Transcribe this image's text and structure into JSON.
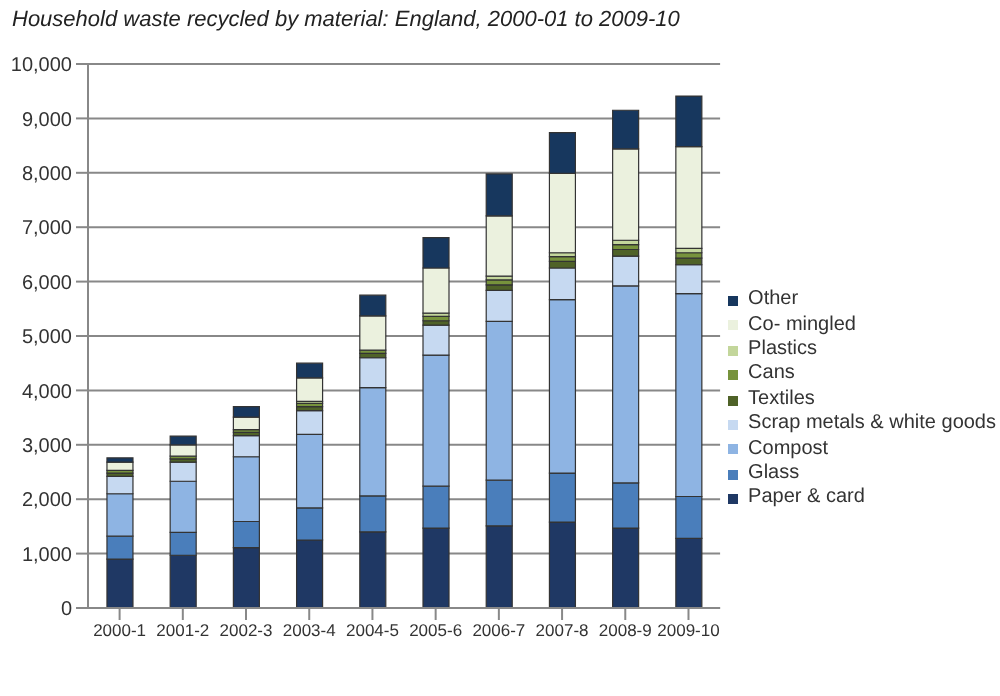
{
  "chart_data": {
    "type": "bar",
    "title": "Household waste recycled by material: England, 2000-01 to 2009-10",
    "categories": [
      "2000-1",
      "2001-2",
      "2002-3",
      "2003-4",
      "2004-5",
      "2005-6",
      "2006-7",
      "2007-8",
      "2008-9",
      "2009-10"
    ],
    "stacked": true,
    "grid": "y",
    "legend": "right",
    "ylim": [
      0,
      10000
    ],
    "yticks": [
      0,
      {
        "value": 1000,
        "label": "1,000"
      },
      {
        "value": 2000,
        "label": "2,000"
      },
      {
        "value": 3000,
        "label": "3,000"
      },
      {
        "value": 4000,
        "label": "4,000"
      },
      {
        "value": 5000,
        "label": "5,000"
      },
      {
        "value": 6000,
        "label": "6,000"
      },
      {
        "value": 7000,
        "label": "7,000"
      },
      {
        "value": 8000,
        "label": "8,000"
      },
      {
        "value": 9000,
        "label": "9,000"
      },
      {
        "value": 10000,
        "label": "10,000"
      }
    ],
    "series": [
      {
        "name": "Paper & card",
        "color": "#1f3864",
        "values": [
          900,
          970,
          1110,
          1250,
          1400,
          1470,
          1510,
          1580,
          1470,
          1280
        ]
      },
      {
        "name": "Glass",
        "color": "#4a7ebb",
        "values": [
          420,
          420,
          480,
          590,
          660,
          770,
          840,
          900,
          830,
          770
        ]
      },
      {
        "name": "Compost",
        "color": "#8eb4e3",
        "values": [
          780,
          940,
          1190,
          1350,
          1990,
          2410,
          2920,
          3190,
          3620,
          3730
        ]
      },
      {
        "name": "Scrap metals & white goods",
        "color": "#c6d9f1",
        "values": [
          320,
          350,
          390,
          440,
          550,
          550,
          570,
          580,
          550,
          530
        ]
      },
      {
        "name": "Textiles",
        "color": "#4f6228",
        "values": [
          60,
          60,
          60,
          70,
          80,
          80,
          100,
          120,
          120,
          120
        ]
      },
      {
        "name": "Cans",
        "color": "#77933c",
        "values": [
          50,
          50,
          50,
          60,
          60,
          80,
          90,
          90,
          90,
          100
        ]
      },
      {
        "name": "Plastics",
        "color": "#c3d69b",
        "values": [
          null,
          null,
          null,
          40,
          null,
          60,
          70,
          70,
          80,
          80
        ]
      },
      {
        "name": "Co- mingled",
        "color": "#ebf1de",
        "values": [
          150,
          210,
          230,
          430,
          630,
          830,
          1110,
          1460,
          1680,
          1870
        ]
      },
      {
        "name": "Other",
        "color": "#17375e",
        "values": [
          80,
          160,
          190,
          270,
          380,
          560,
          770,
          750,
          710,
          930
        ]
      }
    ]
  }
}
